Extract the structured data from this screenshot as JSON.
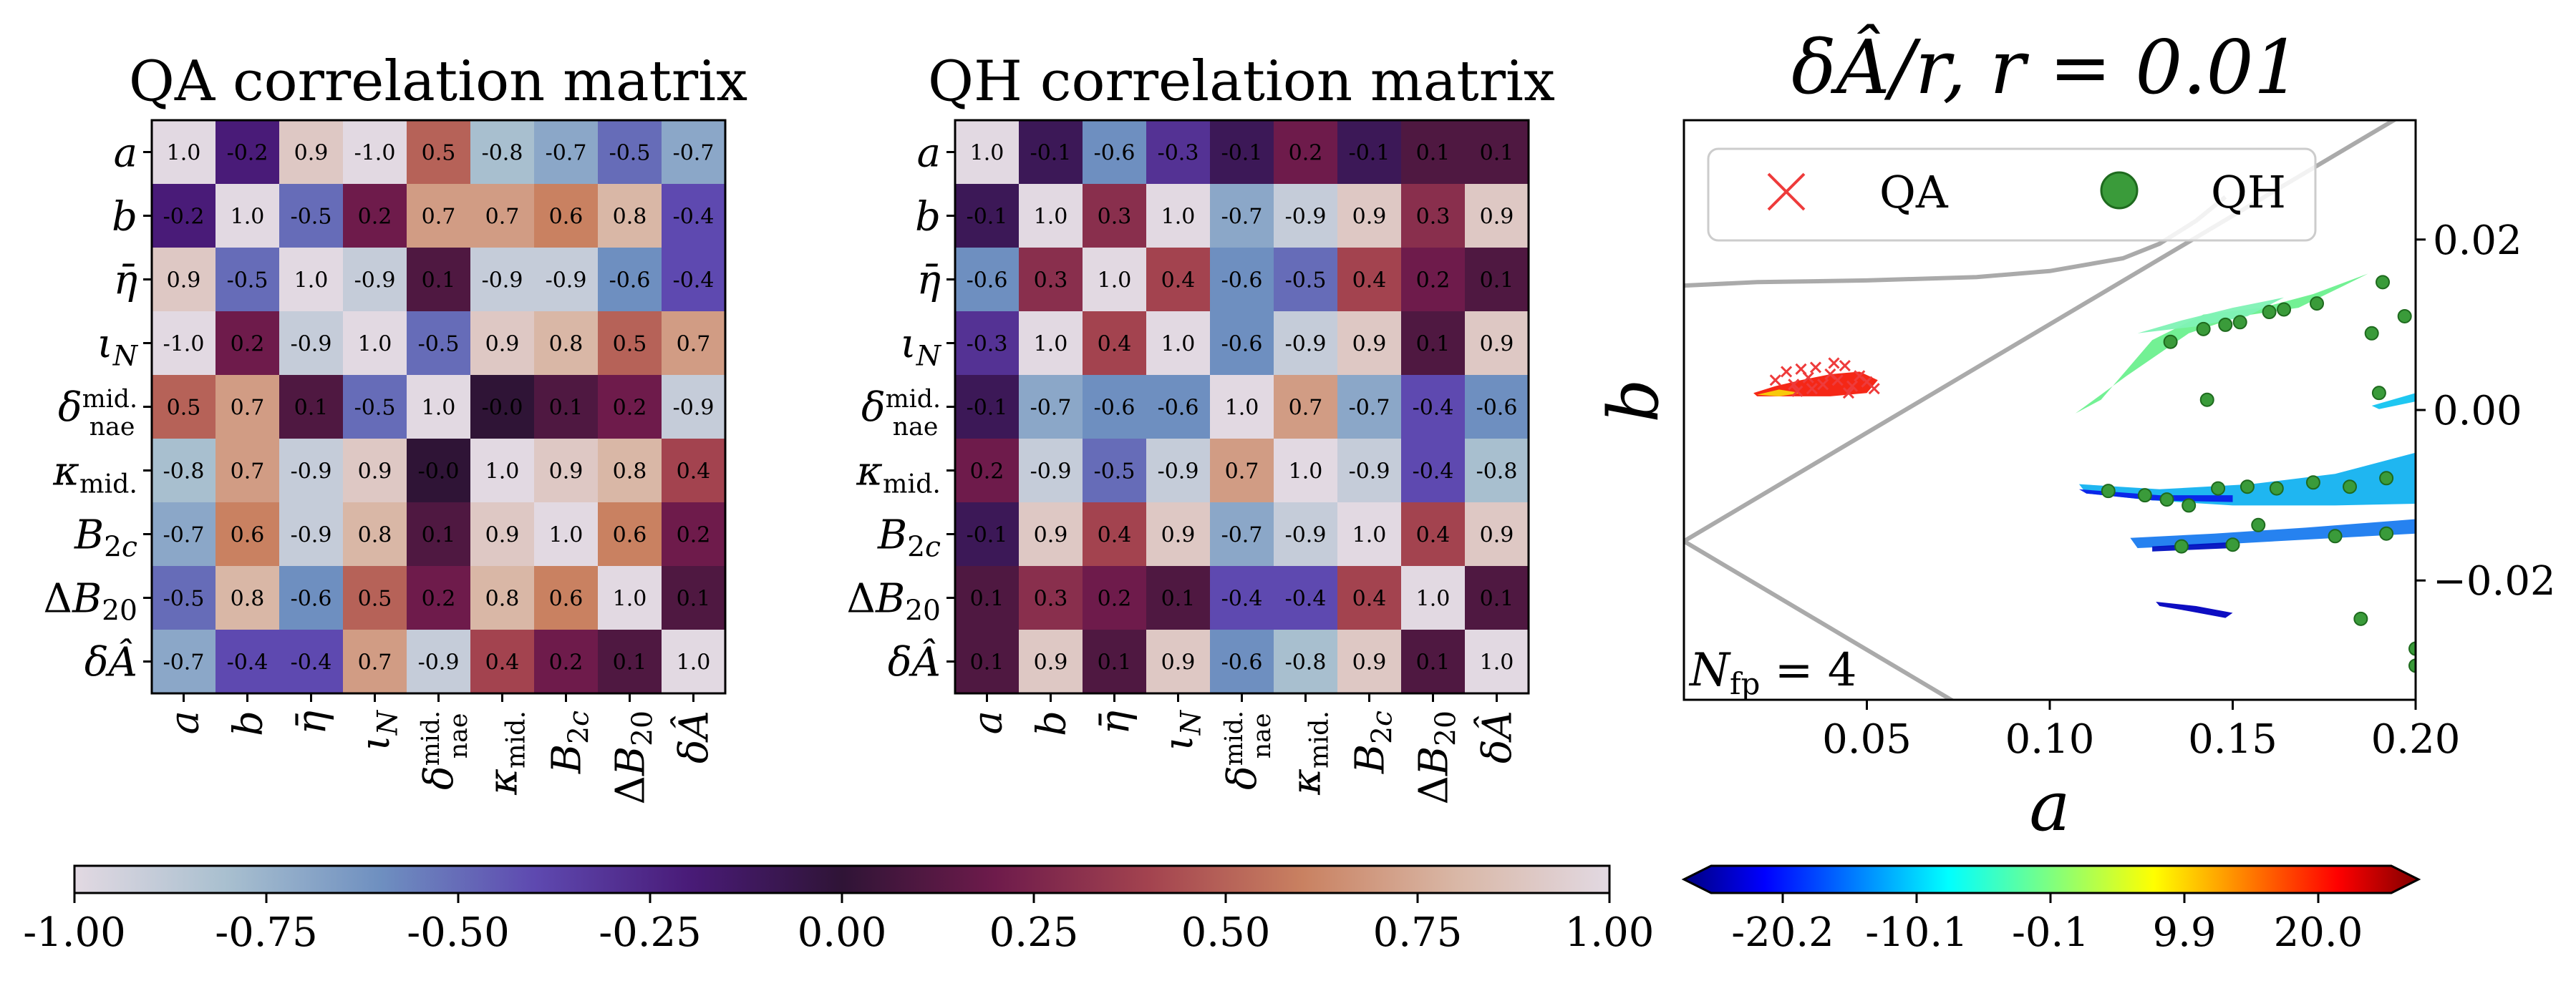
{
  "chart_data": [
    {
      "type": "heatmap",
      "title": "QA correlation matrix",
      "labels": [
        "a",
        "b",
        "η̄",
        "ι_N",
        "δ^mid._nae",
        "κ_mid.",
        "B_2c",
        "ΔB_20",
        "δÂ"
      ],
      "matrix": [
        [
          "1.0",
          "-0.2",
          "0.9",
          "-1.0",
          "0.5",
          "-0.8",
          "-0.7",
          "-0.5",
          "-0.7"
        ],
        [
          "-0.2",
          "1.0",
          "-0.5",
          "0.2",
          "0.7",
          "0.7",
          "0.6",
          "0.8",
          "-0.4"
        ],
        [
          "0.9",
          "-0.5",
          "1.0",
          "-0.9",
          "0.1",
          "-0.9",
          "-0.9",
          "-0.6",
          "-0.4"
        ],
        [
          "-1.0",
          "0.2",
          "-0.9",
          "1.0",
          "-0.5",
          "0.9",
          "0.8",
          "0.5",
          "0.7"
        ],
        [
          "0.5",
          "0.7",
          "0.1",
          "-0.5",
          "1.0",
          "-0.0",
          "0.1",
          "0.2",
          "-0.9"
        ],
        [
          "-0.8",
          "0.7",
          "-0.9",
          "0.9",
          "-0.0",
          "1.0",
          "0.9",
          "0.8",
          "0.4"
        ],
        [
          "-0.7",
          "0.6",
          "-0.9",
          "0.8",
          "0.1",
          "0.9",
          "1.0",
          "0.6",
          "0.2"
        ],
        [
          "-0.5",
          "0.8",
          "-0.6",
          "0.5",
          "0.2",
          "0.8",
          "0.6",
          "1.0",
          "0.1"
        ],
        [
          "-0.7",
          "-0.4",
          "-0.4",
          "0.7",
          "-0.9",
          "0.4",
          "0.2",
          "0.1",
          "1.0"
        ]
      ],
      "clim": [
        -1,
        1
      ]
    },
    {
      "type": "heatmap",
      "title": "QH correlation matrix",
      "labels": [
        "a",
        "b",
        "η̄",
        "ι_N",
        "δ^mid._nae",
        "κ_mid.",
        "B_2c",
        "ΔB_20",
        "δÂ"
      ],
      "matrix": [
        [
          "1.0",
          "-0.1",
          "-0.6",
          "-0.3",
          "-0.1",
          "0.2",
          "-0.1",
          "0.1",
          "0.1"
        ],
        [
          "-0.1",
          "1.0",
          "0.3",
          "1.0",
          "-0.7",
          "-0.9",
          "0.9",
          "0.3",
          "0.9"
        ],
        [
          "-0.6",
          "0.3",
          "1.0",
          "0.4",
          "-0.6",
          "-0.5",
          "0.4",
          "0.2",
          "0.1"
        ],
        [
          "-0.3",
          "1.0",
          "0.4",
          "1.0",
          "-0.6",
          "-0.9",
          "0.9",
          "0.1",
          "0.9"
        ],
        [
          "-0.1",
          "-0.7",
          "-0.6",
          "-0.6",
          "1.0",
          "0.7",
          "-0.7",
          "-0.4",
          "-0.6"
        ],
        [
          "0.2",
          "-0.9",
          "-0.5",
          "-0.9",
          "0.7",
          "1.0",
          "-0.9",
          "-0.4",
          "-0.8"
        ],
        [
          "-0.1",
          "0.9",
          "0.4",
          "0.9",
          "-0.7",
          "-0.9",
          "1.0",
          "0.4",
          "0.9"
        ],
        [
          "0.1",
          "0.3",
          "0.2",
          "0.1",
          "-0.4",
          "-0.4",
          "0.4",
          "1.0",
          "0.1"
        ],
        [
          "0.1",
          "0.9",
          "0.1",
          "0.9",
          "-0.6",
          "-0.8",
          "0.9",
          "0.1",
          "1.0"
        ]
      ],
      "clim": [
        -1,
        1
      ]
    },
    {
      "type": "scatter",
      "title": "δÂ/r,    r = 0.01",
      "xlabel": "a",
      "ylabel": "b",
      "xlim": [
        0.0,
        0.2
      ],
      "ylim": [
        -0.034,
        0.034
      ],
      "xticks": [
        "0.05",
        "0.10",
        "0.15",
        "0.20"
      ],
      "xtick_values": [
        0.05,
        0.1,
        0.15,
        0.2
      ],
      "yticks": [
        "0.02",
        "0.00",
        "−0.02"
      ],
      "ytick_values": [
        0.02,
        0.0,
        -0.02
      ],
      "annotation": "N_fp = 4",
      "legend": {
        "placement": "top",
        "entries": [
          "QA",
          "QH"
        ]
      },
      "series": [
        {
          "name": "QA",
          "marker": "x",
          "color": "#ee3b3b",
          "points": [
            [
              0.025,
              0.0035
            ],
            [
              0.028,
              0.0045
            ],
            [
              0.03,
              0.003
            ],
            [
              0.032,
              0.0048
            ],
            [
              0.034,
              0.0038
            ],
            [
              0.036,
              0.005
            ],
            [
              0.038,
              0.003
            ],
            [
              0.04,
              0.0042
            ],
            [
              0.042,
              0.0035
            ],
            [
              0.044,
              0.0052
            ],
            [
              0.046,
              0.0028
            ],
            [
              0.048,
              0.004
            ],
            [
              0.05,
              0.0033
            ],
            [
              0.052,
              0.0025
            ],
            [
              0.035,
              0.0025
            ],
            [
              0.031,
              0.0022
            ],
            [
              0.045,
              0.002
            ],
            [
              0.041,
              0.0055
            ]
          ]
        },
        {
          "name": "QH",
          "marker": "o",
          "color": "#3a9b3a",
          "points": [
            [
              0.133,
              0.008
            ],
            [
              0.142,
              0.0095
            ],
            [
              0.148,
              0.01
            ],
            [
              0.152,
              0.0103
            ],
            [
              0.16,
              0.0115
            ],
            [
              0.164,
              0.0118
            ],
            [
              0.173,
              0.0125
            ],
            [
              0.188,
              0.009
            ],
            [
              0.191,
              0.015
            ],
            [
              0.197,
              0.011
            ],
            [
              0.19,
              0.002
            ],
            [
              0.143,
              0.0012
            ],
            [
              0.116,
              -0.0095
            ],
            [
              0.126,
              -0.01
            ],
            [
              0.132,
              -0.0105
            ],
            [
              0.138,
              -0.0112
            ],
            [
              0.146,
              -0.0092
            ],
            [
              0.154,
              -0.009
            ],
            [
              0.162,
              -0.0092
            ],
            [
              0.172,
              -0.0085
            ],
            [
              0.182,
              -0.009
            ],
            [
              0.192,
              -0.008
            ],
            [
              0.136,
              -0.016
            ],
            [
              0.15,
              -0.0158
            ],
            [
              0.178,
              -0.0148
            ],
            [
              0.192,
              -0.0145
            ],
            [
              0.157,
              -0.0135
            ],
            [
              0.185,
              -0.0245
            ],
            [
              0.2,
              -0.028
            ],
            [
              0.2,
              -0.03
            ]
          ]
        }
      ],
      "regions": [
        {
          "color": "#6bf08e",
          "polygon": [
            [
              0.107,
              -0.0004
            ],
            [
              0.121,
              0.004
            ],
            [
              0.138,
              0.009
            ],
            [
              0.152,
              0.011
            ],
            [
              0.168,
              0.012
            ],
            [
              0.18,
              0.0145
            ],
            [
              0.187,
              0.016
            ],
            [
              0.172,
              0.0136
            ],
            [
              0.158,
              0.012
            ],
            [
              0.142,
              0.0112
            ],
            [
              0.128,
              0.0082
            ],
            [
              0.114,
              0.0012
            ]
          ]
        },
        {
          "color": "#7ff2b5",
          "polygon": [
            [
              0.124,
              0.009
            ],
            [
              0.136,
              0.0105
            ],
            [
              0.15,
              0.012
            ],
            [
              0.164,
              0.0132
            ],
            [
              0.154,
              0.011
            ],
            [
              0.14,
              0.0098
            ]
          ]
        },
        {
          "color": "#13b2f0",
          "polygon": [
            [
              0.108,
              -0.0087
            ],
            [
              0.13,
              -0.0093
            ],
            [
              0.155,
              -0.0087
            ],
            [
              0.178,
              -0.0075
            ],
            [
              0.2,
              -0.005
            ],
            [
              0.2,
              -0.011
            ],
            [
              0.178,
              -0.0112
            ],
            [
              0.15,
              -0.0112
            ],
            [
              0.128,
              -0.0106
            ],
            [
              0.11,
              -0.0098
            ]
          ]
        },
        {
          "color": "#0a20e8",
          "polygon": [
            [
              0.108,
              -0.0093
            ],
            [
              0.13,
              -0.01
            ],
            [
              0.15,
              -0.01
            ],
            [
              0.15,
              -0.0108
            ],
            [
              0.128,
              -0.0106
            ],
            [
              0.11,
              -0.0098
            ]
          ]
        },
        {
          "color": "#1a7bef",
          "polygon": [
            [
              0.122,
              -0.015
            ],
            [
              0.145,
              -0.0145
            ],
            [
              0.17,
              -0.0138
            ],
            [
              0.2,
              -0.0128
            ],
            [
              0.2,
              -0.0145
            ],
            [
              0.17,
              -0.0152
            ],
            [
              0.145,
              -0.0158
            ],
            [
              0.124,
              -0.0162
            ]
          ]
        },
        {
          "color": "#0010c0",
          "polygon": [
            [
              0.128,
              -0.016
            ],
            [
              0.15,
              -0.0155
            ],
            [
              0.15,
              -0.0162
            ],
            [
              0.128,
              -0.0166
            ]
          ]
        },
        {
          "color": "#0000bf",
          "polygon": [
            [
              0.129,
              -0.0225
            ],
            [
              0.14,
              -0.023
            ],
            [
              0.15,
              -0.0238
            ],
            [
              0.148,
              -0.0244
            ],
            [
              0.138,
              -0.0236
            ],
            [
              0.13,
              -0.023
            ]
          ]
        },
        {
          "color": "#13c4f0",
          "polygon": [
            [
              0.188,
              0.0005
            ],
            [
              0.2,
              0.002
            ],
            [
              0.2,
              0.001
            ],
            [
              0.19,
              0.0001
            ]
          ]
        },
        {
          "color": "#f41b0a",
          "polygon": [
            [
              0.019,
              0.002
            ],
            [
              0.025,
              0.0028
            ],
            [
              0.032,
              0.0035
            ],
            [
              0.04,
              0.0042
            ],
            [
              0.048,
              0.0045
            ],
            [
              0.053,
              0.0035
            ],
            [
              0.05,
              0.002
            ],
            [
              0.04,
              0.0016
            ],
            [
              0.03,
              0.0016
            ],
            [
              0.02,
              0.0016
            ]
          ]
        },
        {
          "color": "#f8d20a",
          "polygon": [
            [
              0.02,
              0.0018
            ],
            [
              0.026,
              0.0024
            ],
            [
              0.032,
              0.002
            ],
            [
              0.026,
              0.0016
            ]
          ]
        }
      ],
      "lines": [
        {
          "color": "#aaaaaa",
          "points": [
            [
              0.0,
              0.0146
            ],
            [
              0.02,
              0.015
            ],
            [
              0.05,
              0.0152
            ],
            [
              0.08,
              0.0156
            ],
            [
              0.1,
              0.0163
            ],
            [
              0.12,
              0.0178
            ],
            [
              0.13,
              0.0195
            ],
            [
              0.14,
              0.0222
            ],
            [
              0.148,
              0.025
            ]
          ]
        },
        {
          "color": "#aaaaaa",
          "points": [
            [
              0.0,
              -0.0154
            ],
            [
              0.196,
              0.0345
            ]
          ]
        },
        {
          "color": "#aaaaaa",
          "points": [
            [
              0.0,
              -0.0154
            ],
            [
              0.075,
              -0.0345
            ]
          ]
        }
      ],
      "colorbar": {
        "type": "sequential",
        "colormap": "jet",
        "ticks": [
          "-20.2",
          "-10.1",
          "-0.1",
          "9.9",
          "20.0"
        ],
        "extend": "both"
      }
    }
  ],
  "shared_colorbar": {
    "colormap": "twilight",
    "ticks": [
      "-1.00",
      "-0.75",
      "-0.50",
      "-0.25",
      "0.00",
      "0.25",
      "0.50",
      "0.75",
      "1.00"
    ]
  }
}
